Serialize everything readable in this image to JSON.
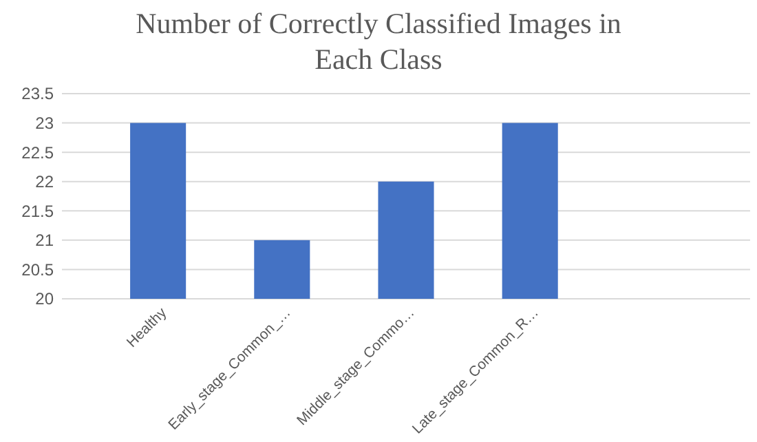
{
  "chart_data": {
    "type": "bar",
    "title": "Number of Correctly Classified Images in Each Class",
    "categories": [
      "Healthy",
      "Early_stage_Common_…",
      "Middle_stage_Commo…",
      "Late_stage_Common_R…",
      null
    ],
    "values": [
      23,
      21,
      22,
      23,
      null
    ],
    "color": "#4472c4",
    "ylim": [
      20,
      23.5
    ],
    "yticks": [
      20,
      20.5,
      21,
      21.5,
      22,
      22.5,
      23,
      23.5
    ],
    "grid": "y"
  }
}
